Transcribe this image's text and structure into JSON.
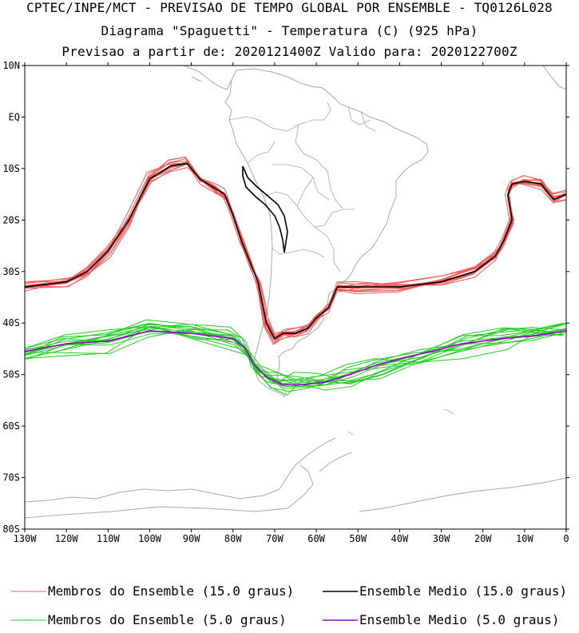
{
  "header": {
    "line1": "CPTEC/INPE/MCT - PREVISAO DE TEMPO GLOBAL POR ENSEMBLE - TQ0126L028",
    "line2": "Diagrama \"Spaguetti\" - Temperatura (C) (925 hPa)",
    "line3": "Previsao a partir de: 2020121400Z  Valido para: 2020122700Z"
  },
  "map": {
    "lat_labels": [
      "10N",
      "EQ",
      "10S",
      "20S",
      "30S",
      "40S",
      "50S",
      "60S",
      "70S",
      "80S"
    ],
    "lon_labels": [
      "130W",
      "120W",
      "110W",
      "100W",
      "90W",
      "80W",
      "70W",
      "60W",
      "50W",
      "40W",
      "30W",
      "20W",
      "10W",
      "0"
    ],
    "lat_range": [
      10,
      -80
    ],
    "lon_range": [
      -130,
      0
    ],
    "coast_color": "#a8a8a8"
  },
  "legend": {
    "items": [
      {
        "label": "Membros do Ensemble (15.0 graus)",
        "color": "#f05a5a"
      },
      {
        "label": "Ensemble Medio (15.0 graus)",
        "color": "#000000"
      },
      {
        "label": "Membros do Ensemble (5.0 graus)",
        "color": "#22cc22"
      },
      {
        "label": "Ensemble Medio (5.0 graus)",
        "color": "#9900cc"
      }
    ]
  },
  "chart_data": {
    "type": "line",
    "series": [
      {
        "name": "Ensemble Medio (15.0 graus)",
        "color": "#000000",
        "x": [
          -130,
          -120,
          -115,
          -110,
          -105,
          -100,
          -95,
          -91,
          -88,
          -84,
          -82,
          -80,
          -78,
          -76,
          -74,
          -73,
          -72,
          -70,
          -68,
          -65,
          -62,
          -60,
          -57,
          -55,
          -50,
          -40,
          -30,
          -22,
          -17,
          -15,
          -13,
          -14,
          -13,
          -10,
          -6,
          -3,
          0
        ],
        "y": [
          -33,
          -32,
          -30,
          -26,
          -20,
          -12,
          -9.5,
          -9,
          -12,
          -14,
          -15,
          -19,
          -24,
          -28,
          -32,
          -36,
          -40,
          -43,
          -42,
          -42,
          -41,
          -39,
          -37,
          -33,
          -33,
          -33,
          -32,
          -30,
          -27,
          -24,
          -20,
          -15,
          -13,
          -12.5,
          -13,
          -16,
          -15
        ]
      },
      {
        "name": "Ensemble Medio (5.0 graus)",
        "color": "#9900cc",
        "x": [
          -130,
          -120,
          -110,
          -100,
          -90,
          -80,
          -77,
          -75,
          -72,
          -68,
          -64,
          -58,
          -52,
          -45,
          -35,
          -25,
          -15,
          -8,
          0
        ],
        "y": [
          -45.5,
          -44,
          -43.5,
          -41.5,
          -42,
          -43,
          -45,
          -48,
          -50.5,
          -52,
          -52,
          -51.5,
          -50,
          -48,
          -46,
          -44,
          -43,
          -42.5,
          -41.5
        ]
      }
    ]
  }
}
